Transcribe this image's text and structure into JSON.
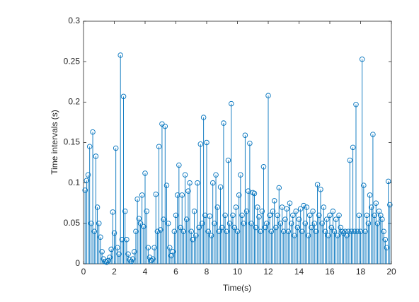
{
  "chart_data": {
    "type": "stem",
    "xlabel": "Time(s)",
    "ylabel": "Time intervals (s)",
    "color": "#0072bd",
    "grid": false,
    "box": true,
    "xlim": [
      0,
      20
    ],
    "xticks": [
      0,
      2,
      4,
      6,
      8,
      10,
      12,
      14,
      16,
      18,
      20
    ],
    "ylim": [
      0,
      0.3
    ],
    "yticks": [
      0,
      0.05,
      0.1,
      0.15,
      0.2,
      0.25,
      0.3
    ],
    "x": [
      0.1,
      0.2,
      0.3,
      0.4,
      0.5,
      0.6,
      0.7,
      0.8,
      0.9,
      1.0,
      1.1,
      1.2,
      1.3,
      1.4,
      1.5,
      1.6,
      1.7,
      1.8,
      1.9,
      2.0,
      2.1,
      2.2,
      2.3,
      2.4,
      2.5,
      2.6,
      2.7,
      2.8,
      2.9,
      3.0,
      3.1,
      3.2,
      3.3,
      3.4,
      3.5,
      3.6,
      3.7,
      3.8,
      3.9,
      4.0,
      4.1,
      4.2,
      4.3,
      4.4,
      4.5,
      4.6,
      4.7,
      4.8,
      4.9,
      5.0,
      5.1,
      5.2,
      5.3,
      5.4,
      5.5,
      5.6,
      5.7,
      5.8,
      5.9,
      6.0,
      6.1,
      6.2,
      6.3,
      6.4,
      6.5,
      6.6,
      6.7,
      6.8,
      6.9,
      7.0,
      7.1,
      7.2,
      7.3,
      7.4,
      7.5,
      7.6,
      7.7,
      7.8,
      7.9,
      8.0,
      8.1,
      8.2,
      8.3,
      8.4,
      8.5,
      8.6,
      8.7,
      8.8,
      8.9,
      9.0,
      9.1,
      9.2,
      9.3,
      9.4,
      9.5,
      9.6,
      9.7,
      9.8,
      9.9,
      10.0,
      10.1,
      10.2,
      10.3,
      10.4,
      10.5,
      10.6,
      10.7,
      10.8,
      10.9,
      11.0,
      11.1,
      11.2,
      11.3,
      11.4,
      11.5,
      11.6,
      11.7,
      11.8,
      11.9,
      12.0,
      12.1,
      12.2,
      12.3,
      12.4,
      12.5,
      12.6,
      12.7,
      12.8,
      12.9,
      13.0,
      13.1,
      13.2,
      13.3,
      13.4,
      13.5,
      13.6,
      13.7,
      13.8,
      13.9,
      14.0,
      14.1,
      14.2,
      14.3,
      14.4,
      14.5,
      14.6,
      14.7,
      14.8,
      14.9,
      15.0,
      15.1,
      15.2,
      15.3,
      15.4,
      15.5,
      15.6,
      15.7,
      15.8,
      15.9,
      16.0,
      16.1,
      16.2,
      16.3,
      16.4,
      16.5,
      16.6,
      16.7,
      16.8,
      16.9,
      17.0,
      17.1,
      17.2,
      17.3,
      17.4,
      17.5,
      17.6,
      17.7,
      17.8,
      17.9,
      18.0,
      18.1,
      18.2,
      18.3,
      18.4,
      18.5,
      18.6,
      18.7,
      18.8,
      18.9,
      19.0,
      19.1,
      19.2,
      19.3,
      19.4,
      19.5,
      19.6,
      19.7,
      19.8,
      19.9
    ],
    "values": [
      0.091,
      0.103,
      0.11,
      0.145,
      0.05,
      0.163,
      0.04,
      0.133,
      0.07,
      0.05,
      0.033,
      0.015,
      0.006,
      0.003,
      0.002,
      0.004,
      0.008,
      0.018,
      0.064,
      0.038,
      0.143,
      0.02,
      0.012,
      0.258,
      0.03,
      0.207,
      0.065,
      0.03,
      0.012,
      0.005,
      0.003,
      0.006,
      0.015,
      0.04,
      0.08,
      0.056,
      0.05,
      0.085,
      0.046,
      0.112,
      0.065,
      0.02,
      0.008,
      0.004,
      0.006,
      0.02,
      0.086,
      0.04,
      0.145,
      0.042,
      0.173,
      0.055,
      0.17,
      0.097,
      0.05,
      0.02,
      0.01,
      0.015,
      0.04,
      0.06,
      0.085,
      0.122,
      0.045,
      0.085,
      0.04,
      0.11,
      0.055,
      0.09,
      0.1,
      0.04,
      0.03,
      0.065,
      0.035,
      0.1,
      0.045,
      0.148,
      0.05,
      0.181,
      0.06,
      0.15,
      0.04,
      0.059,
      0.035,
      0.1,
      0.05,
      0.11,
      0.07,
      0.04,
      0.095,
      0.045,
      0.174,
      0.06,
      0.04,
      0.128,
      0.05,
      0.198,
      0.06,
      0.045,
      0.07,
      0.04,
      0.085,
      0.11,
      0.06,
      0.05,
      0.159,
      0.065,
      0.09,
      0.149,
      0.05,
      0.088,
      0.087,
      0.045,
      0.07,
      0.058,
      0.04,
      0.065,
      0.12,
      0.045,
      0.05,
      0.208,
      0.06,
      0.04,
      0.065,
      0.078,
      0.045,
      0.06,
      0.094,
      0.05,
      0.07,
      0.04,
      0.055,
      0.068,
      0.04,
      0.075,
      0.05,
      0.06,
      0.035,
      0.065,
      0.045,
      0.055,
      0.068,
      0.04,
      0.072,
      0.05,
      0.07,
      0.035,
      0.06,
      0.045,
      0.065,
      0.05,
      0.04,
      0.098,
      0.06,
      0.092,
      0.05,
      0.07,
      0.04,
      0.055,
      0.035,
      0.06,
      0.045,
      0.065,
      0.04,
      0.055,
      0.035,
      0.06,
      0.045,
      0.04,
      0.038,
      0.04,
      0.035,
      0.04,
      0.128,
      0.04,
      0.144,
      0.04,
      0.197,
      0.04,
      0.06,
      0.04,
      0.253,
      0.097,
      0.04,
      0.06,
      0.05,
      0.085,
      0.07,
      0.16,
      0.06,
      0.075,
      0.05,
      0.065,
      0.06,
      0.055,
      0.04,
      0.03,
      0.02,
      0.102,
      0.073
    ]
  }
}
